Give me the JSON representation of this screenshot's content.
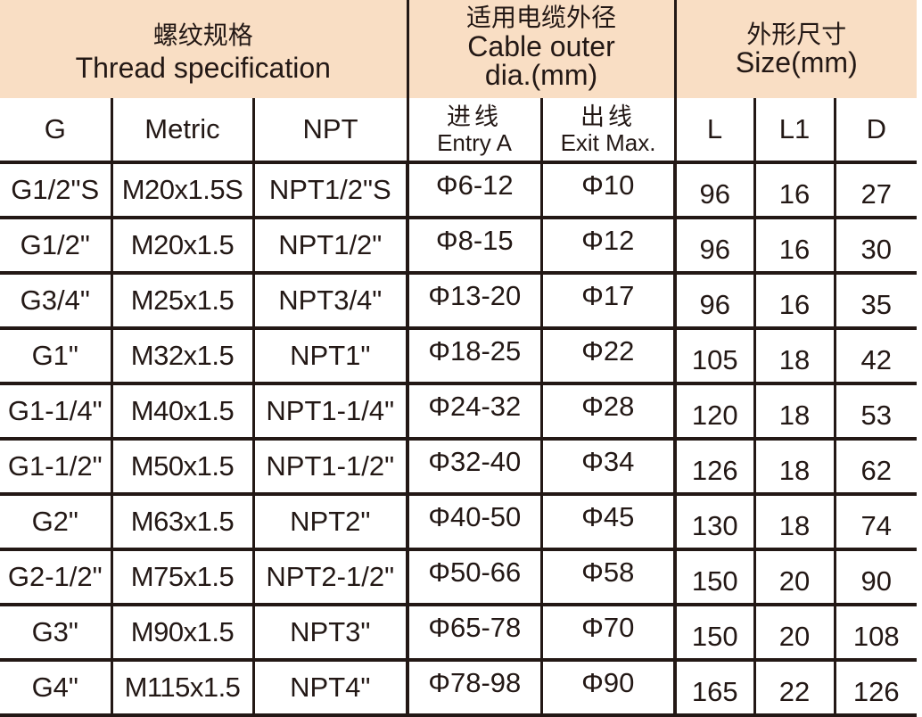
{
  "table": {
    "header_fill_color": "#f9dec4",
    "border_color": "#231815",
    "text_color": "#231815",
    "groups": {
      "thread": {
        "zh": "螺纹规格",
        "en": "Thread specification"
      },
      "cable": {
        "zh": "适用电缆外径",
        "en_line1": "Cable outer",
        "en_line2": "dia.(mm)"
      },
      "size": {
        "zh": "外形尺寸",
        "en": "Size(mm)"
      }
    },
    "columns": {
      "g": "G",
      "metric": "Metric",
      "npt": "NPT",
      "entry": {
        "zh": "进线",
        "en": "Entry A"
      },
      "exit": {
        "zh": "出线",
        "en": "Exit Max."
      },
      "l": "L",
      "l1": "L1",
      "d": "D"
    },
    "rows": [
      {
        "g": "G1/2\"S",
        "metric": "M20x1.5S",
        "npt": "NPT1/2\"S",
        "entry": "Φ6-12",
        "exit": "Φ10",
        "l": "96",
        "l1": "16",
        "d": "27"
      },
      {
        "g": "G1/2\"",
        "metric": "M20x1.5",
        "npt": "NPT1/2\"",
        "entry": "Φ8-15",
        "exit": "Φ12",
        "l": "96",
        "l1": "16",
        "d": "30"
      },
      {
        "g": "G3/4\"",
        "metric": "M25x1.5",
        "npt": "NPT3/4\"",
        "entry": "Φ13-20",
        "exit": "Φ17",
        "l": "96",
        "l1": "16",
        "d": "35"
      },
      {
        "g": "G1\"",
        "metric": "M32x1.5",
        "npt": "NPT1\"",
        "entry": "Φ18-25",
        "exit": "Φ22",
        "l": "105",
        "l1": "18",
        "d": "42"
      },
      {
        "g": "G1-1/4\"",
        "metric": "M40x1.5",
        "npt": "NPT1-1/4\"",
        "entry": "Φ24-32",
        "exit": "Φ28",
        "l": "120",
        "l1": "18",
        "d": "53"
      },
      {
        "g": "G1-1/2\"",
        "metric": "M50x1.5",
        "npt": "NPT1-1/2\"",
        "entry": "Φ32-40",
        "exit": "Φ34",
        "l": "126",
        "l1": "18",
        "d": "62"
      },
      {
        "g": "G2\"",
        "metric": "M63x1.5",
        "npt": "NPT2\"",
        "entry": "Φ40-50",
        "exit": "Φ45",
        "l": "130",
        "l1": "18",
        "d": "74"
      },
      {
        "g": "G2-1/2\"",
        "metric": "M75x1.5",
        "npt": "NPT2-1/2\"",
        "entry": "Φ50-66",
        "exit": "Φ58",
        "l": "150",
        "l1": "20",
        "d": "90"
      },
      {
        "g": "G3\"",
        "metric": "M90x1.5",
        "npt": "NPT3\"",
        "entry": "Φ65-78",
        "exit": "Φ70",
        "l": "150",
        "l1": "20",
        "d": "108"
      },
      {
        "g": "G4\"",
        "metric": "M115x1.5",
        "npt": "NPT4\"",
        "entry": "Φ78-98",
        "exit": "Φ90",
        "l": "165",
        "l1": "22",
        "d": "126"
      }
    ]
  }
}
